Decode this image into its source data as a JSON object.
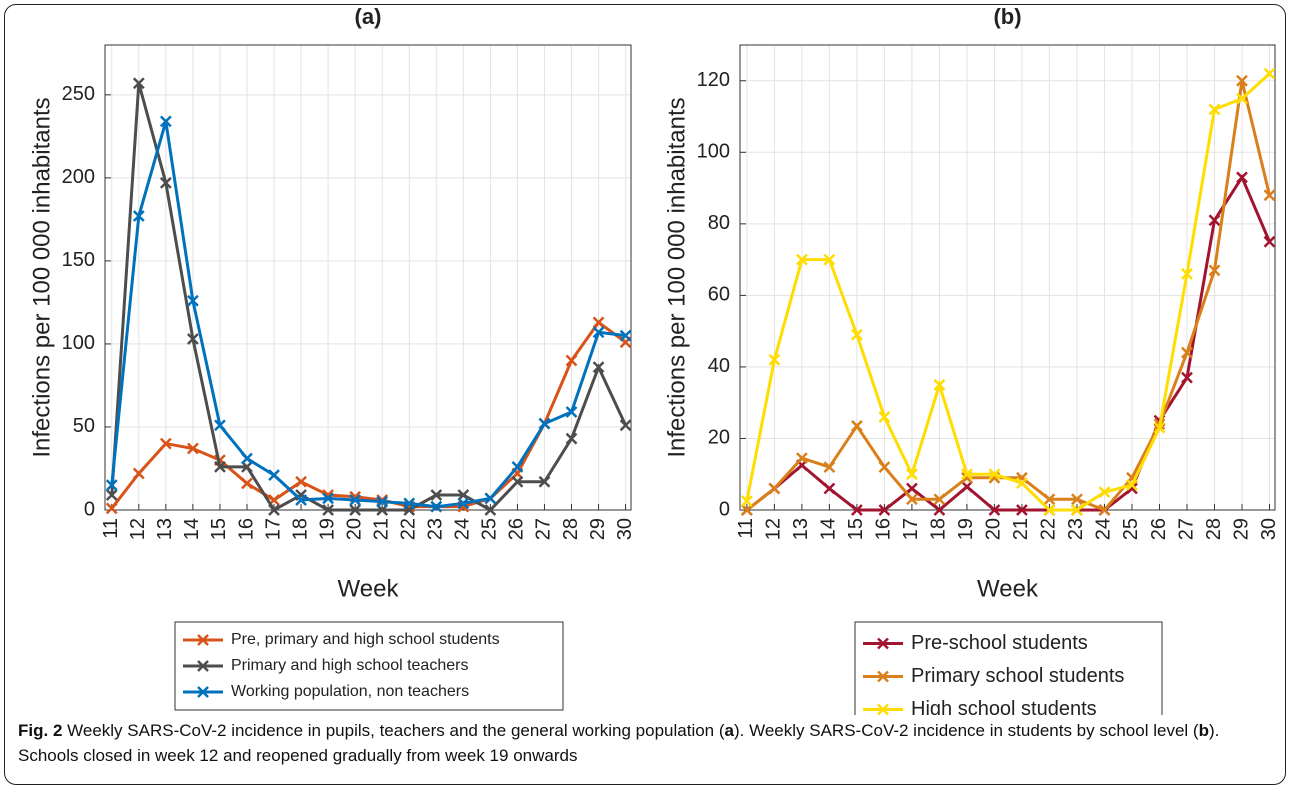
{
  "chart_data": [
    {
      "type": "line",
      "title": "(a)",
      "xlabel": "Week",
      "ylabel": "Infections per 100 000 inhabitants",
      "x": [
        11,
        12,
        13,
        14,
        15,
        16,
        17,
        18,
        19,
        20,
        21,
        22,
        23,
        24,
        25,
        26,
        27,
        28,
        29,
        30
      ],
      "xlim": [
        10.75,
        30.2
      ],
      "xticks": [
        11,
        12,
        13,
        14,
        15,
        16,
        17,
        18,
        19,
        20,
        21,
        22,
        23,
        24,
        25,
        26,
        27,
        28,
        29,
        30
      ],
      "ylim": [
        0,
        280
      ],
      "yticks": [
        0,
        50,
        100,
        150,
        200,
        250
      ],
      "grid": true,
      "marker": "x",
      "legend": "below",
      "series": [
        {
          "name": "Pre, primary and high school students",
          "color": "#d95319",
          "values": [
            1,
            22,
            40,
            37,
            30,
            16,
            6,
            17,
            9,
            8,
            6,
            2,
            2,
            2,
            7,
            22,
            52,
            90,
            113,
            101
          ]
        },
        {
          "name": "Primary and high school teachers",
          "color": "#4d4d4d",
          "values": [
            9,
            257,
            197,
            103,
            26,
            26,
            0,
            9,
            0,
            0,
            0,
            0,
            9,
            9,
            0,
            17,
            17,
            43,
            86,
            51
          ]
        },
        {
          "name": "Working population, non teachers",
          "color": "#0072bd",
          "values": [
            15,
            177,
            234,
            126,
            51,
            31,
            21,
            6,
            7,
            6,
            5,
            4,
            2,
            4,
            7,
            26,
            52,
            59,
            107,
            105
          ]
        }
      ]
    },
    {
      "type": "line",
      "title": "(b)",
      "xlabel": "Week",
      "ylabel": "Infections per 100 000 inhabitants",
      "x": [
        11,
        12,
        13,
        14,
        15,
        16,
        17,
        18,
        19,
        20,
        21,
        22,
        23,
        24,
        25,
        26,
        27,
        28,
        29,
        30
      ],
      "xlim": [
        10.75,
        30.2
      ],
      "xticks": [
        11,
        12,
        13,
        14,
        15,
        16,
        17,
        18,
        19,
        20,
        21,
        22,
        23,
        24,
        25,
        26,
        27,
        28,
        29,
        30
      ],
      "ylim": [
        0,
        130
      ],
      "yticks": [
        0,
        20,
        40,
        60,
        80,
        100,
        120
      ],
      "grid": true,
      "marker": "x",
      "legend": "below",
      "series": [
        {
          "name": "Pre-school students",
          "color": "#a2142f",
          "values": [
            0,
            6,
            12.5,
            6,
            0,
            0,
            6,
            0,
            6.5,
            0,
            0,
            0,
            0,
            0,
            6,
            25,
            37,
            81,
            93,
            75
          ]
        },
        {
          "name": "Primary school students",
          "color": "#d9801a",
          "values": [
            0,
            6,
            14.5,
            12,
            23.5,
            12,
            3,
            3,
            9,
            9,
            9,
            3,
            3,
            0,
            9,
            24,
            44,
            67,
            120,
            88
          ]
        },
        {
          "name": "High school students",
          "color": "#ffdd00",
          "values": [
            2.5,
            42,
            70,
            70,
            49,
            26,
            10,
            35,
            10,
            10,
            7.5,
            0,
            0,
            5,
            7,
            23,
            66,
            112,
            115,
            122
          ]
        }
      ]
    }
  ],
  "caption": {
    "label": "Fig. 2",
    "parts": [
      " Weekly SARS-CoV-2 incidence in pupils, teachers and the general working population (",
      "a",
      "). Weekly SARS-CoV-2 incidence in students by school level (",
      "b",
      "). Schools closed in week 12 and reopened gradually from week 19 onwards"
    ]
  }
}
